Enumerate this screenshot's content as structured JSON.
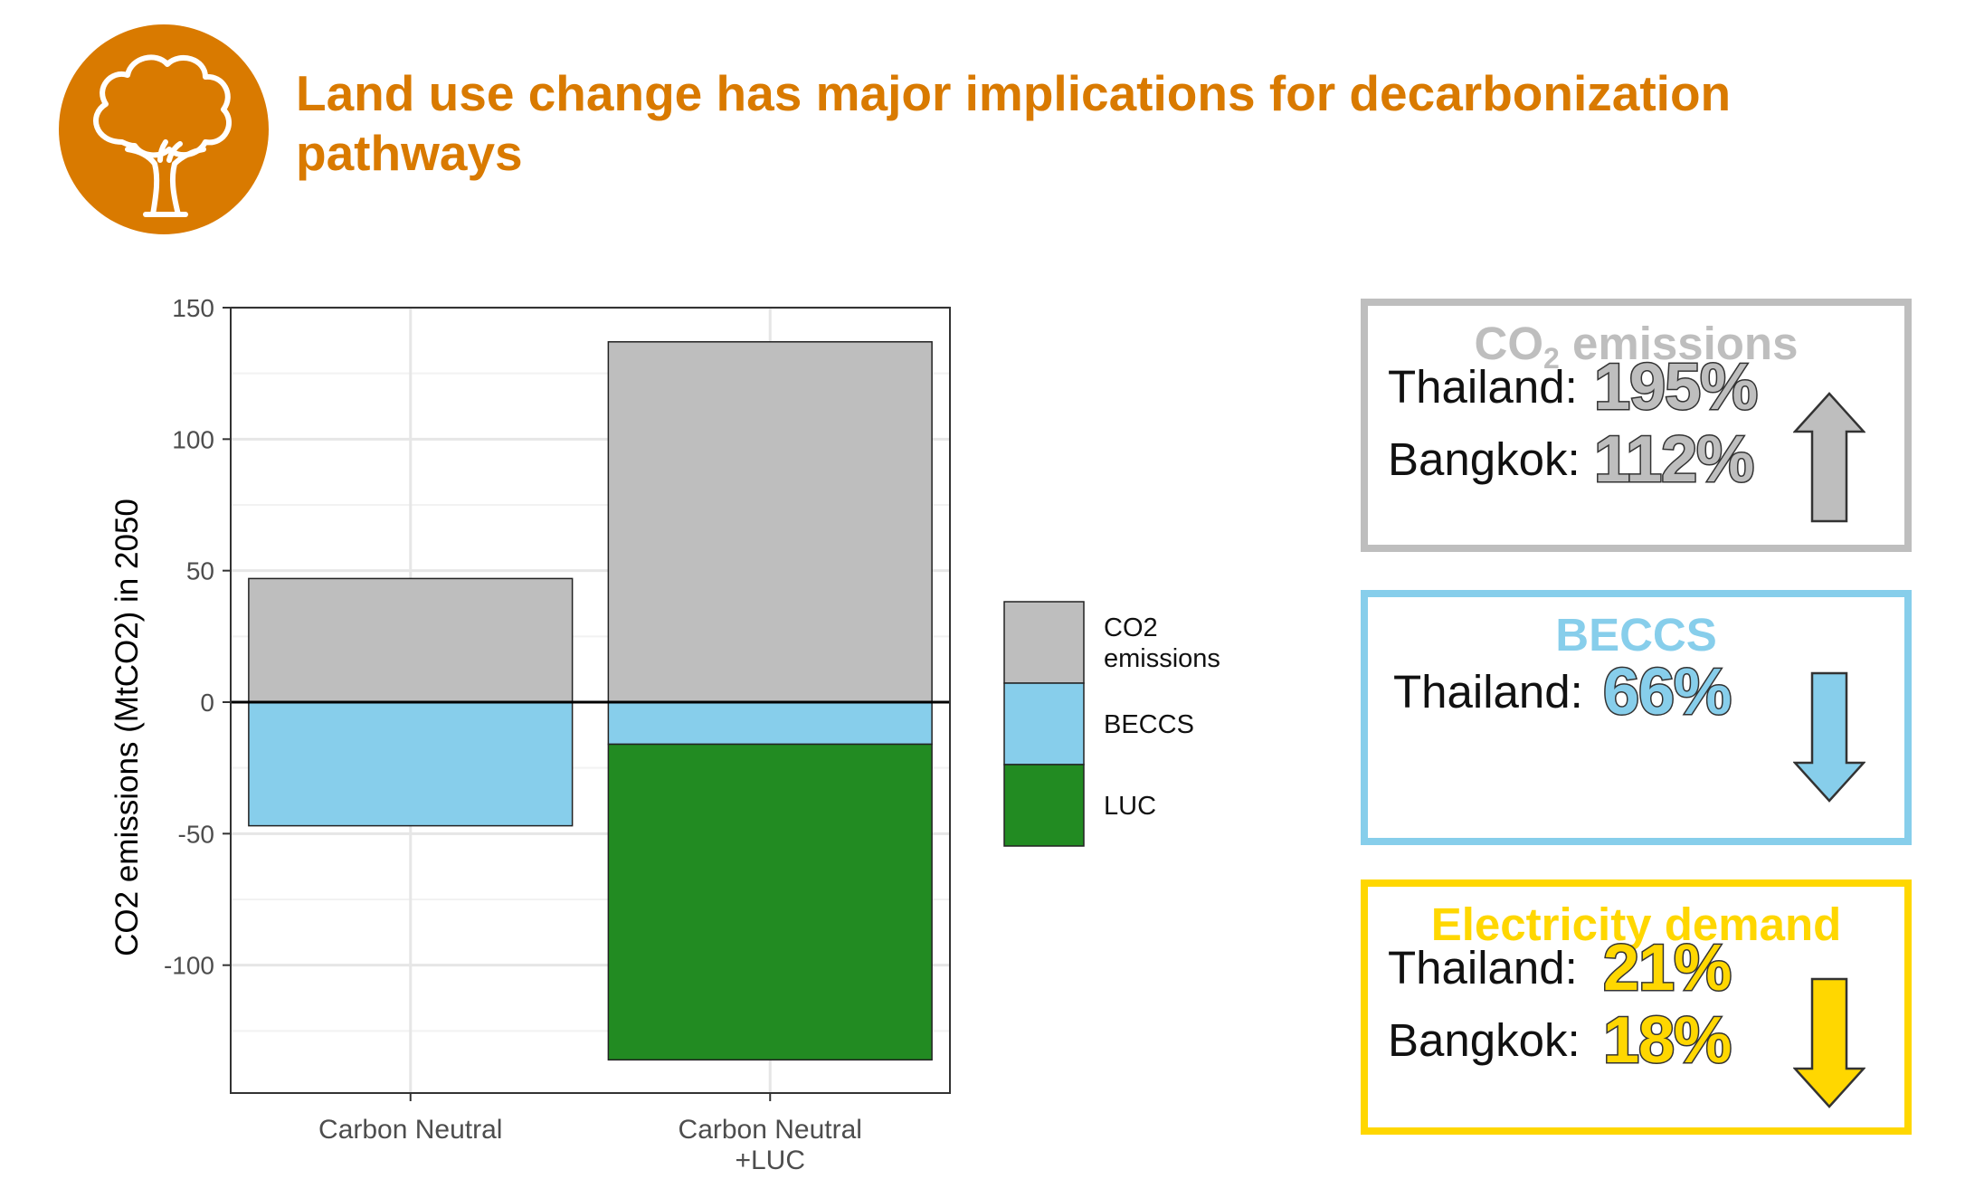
{
  "header": {
    "title": "Land use change has major implications for decarbonization pathways",
    "logo_icon": "tree-icon",
    "accent_color": "#D97A00"
  },
  "chart_data": {
    "type": "bar",
    "stacked": true,
    "title": "",
    "xlabel": "",
    "ylabel": "CO2 emissions (MtCO2) in 2050",
    "categories": [
      "Carbon Neutral",
      "Carbon Neutral\n+LUC"
    ],
    "series": [
      {
        "name": "CO2\nemissions",
        "color": "#BEBEBE",
        "values": [
          47,
          137
        ]
      },
      {
        "name": "BECCS",
        "color": "#87CEEB",
        "values": [
          -47,
          -16
        ]
      },
      {
        "name": "LUC",
        "color": "#228B22",
        "values": [
          0,
          -120
        ]
      }
    ],
    "ylim": [
      -150,
      150
    ],
    "yticks": [
      150,
      100,
      50,
      0,
      -50,
      -100
    ],
    "ytick_labels": [
      "150",
      "100",
      "50",
      "0",
      "-50",
      "-100"
    ],
    "grid": true,
    "legend_position": "right"
  },
  "summary_boxes": [
    {
      "title_main": "CO",
      "title_sub": "2",
      "title_rest": " emissions",
      "color": "#BEBEBE",
      "arrow": "up",
      "arrow_icon": "arrow-up-icon",
      "rows": [
        {
          "label": "Thailand:",
          "value": "195%"
        },
        {
          "label": "Bangkok:",
          "value": "112%"
        }
      ]
    },
    {
      "title_main": "BECCS",
      "color": "#87CEEB",
      "arrow": "down",
      "arrow_icon": "arrow-down-icon",
      "rows": [
        {
          "label": "Thailand:",
          "value": "66%"
        }
      ]
    },
    {
      "title_main": "Electricity demand",
      "color": "#FFD700",
      "arrow": "down",
      "arrow_icon": "arrow-down-icon",
      "rows": [
        {
          "label": "Thailand:",
          "value": "21%"
        },
        {
          "label": "Bangkok:",
          "value": "18%"
        }
      ]
    }
  ]
}
